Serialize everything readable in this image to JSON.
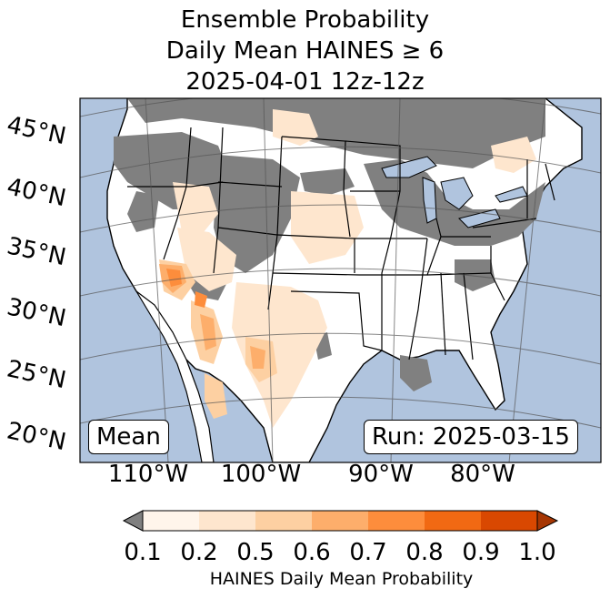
{
  "title": {
    "line1": "Ensemble Probability",
    "line2": "Daily Mean HAINES ≥ 6",
    "line3": "2025-04-01 12z-12z"
  },
  "map": {
    "colors": {
      "ocean": "#b0c4de",
      "land_missing": "#808080",
      "land": "#ffffff"
    },
    "lat_labels": [
      "45°N",
      "40°N",
      "35°N",
      "30°N",
      "25°N",
      "20°N"
    ],
    "lon_labels": [
      "110°W",
      "100°W",
      "90°W",
      "80°W"
    ]
  },
  "boxes": {
    "left": "Mean",
    "right": "Run: 2025-03-15"
  },
  "colorbar": {
    "ticks": [
      "0.1",
      "0.2",
      "0.5",
      "0.6",
      "0.7",
      "0.8",
      "0.9",
      "1.0"
    ],
    "colors": [
      "#fff5eb",
      "#fee6ce",
      "#fdd0a2",
      "#fdae6b",
      "#fd8d3c",
      "#f16913",
      "#d94801",
      "#a63603"
    ],
    "under_color": "#808080",
    "label": "HAINES Daily Mean Probability"
  }
}
